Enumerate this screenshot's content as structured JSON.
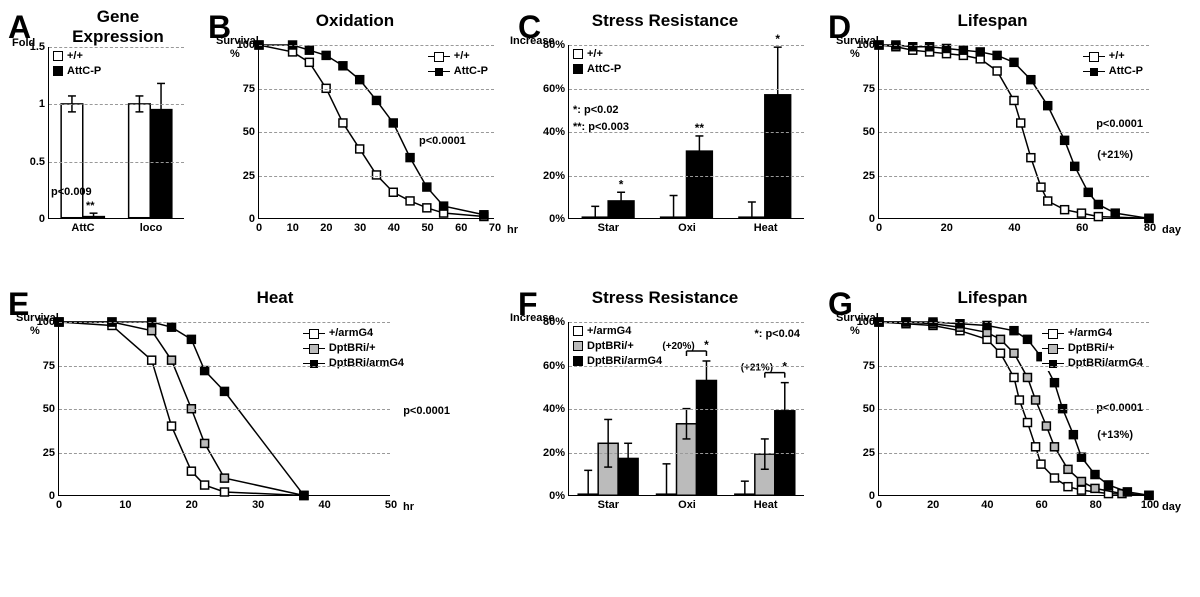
{
  "panels": {
    "A": {
      "letter": "A",
      "title": "Gene\nExpression"
    },
    "B": {
      "letter": "B",
      "title": "Oxidation"
    },
    "C": {
      "letter": "C",
      "title": "Stress Resistance"
    },
    "D": {
      "letter": "D",
      "title": "Lifespan"
    },
    "E": {
      "letter": "E",
      "title": "Heat"
    },
    "F": {
      "letter": "F",
      "title": "Stress Resistance"
    },
    "G": {
      "letter": "G",
      "title": "Lifespan"
    }
  },
  "A": {
    "ylabel_top": "Fold",
    "ylim": [
      0,
      1.5
    ],
    "yticks": [
      0,
      0.5,
      1,
      1.5
    ],
    "categories": [
      "AttC",
      "loco"
    ],
    "bars_wt": {
      "vals": [
        1.0,
        1.0
      ],
      "err": [
        0.07,
        0.07
      ]
    },
    "bars_mut": {
      "vals": [
        0.01,
        0.95
      ],
      "err": [
        0.03,
        0.23
      ]
    },
    "legend": {
      "wt": "+/+",
      "mut": "AttC-P"
    },
    "note": "p<0.009",
    "note2": "**",
    "bar_width": 0.32,
    "colors": {
      "wt": "#ffffff",
      "mut": "#000000",
      "axis": "#000000",
      "grid": "#999999"
    }
  },
  "B": {
    "ylabel_top": "Survival",
    "ylabel_unit": "%",
    "ylim": [
      0,
      100
    ],
    "yticks": [
      0,
      25,
      50,
      75,
      100
    ],
    "xlim": [
      0,
      70
    ],
    "xticks": [
      0,
      10,
      20,
      30,
      40,
      50,
      60,
      70
    ],
    "xunit": "hr",
    "series": {
      "wt": {
        "label": "+/+",
        "x": [
          0,
          10,
          15,
          20,
          25,
          30,
          35,
          40,
          45,
          50,
          55,
          67
        ],
        "y": [
          100,
          96,
          90,
          75,
          55,
          40,
          25,
          15,
          10,
          6,
          3,
          1
        ]
      },
      "mut": {
        "label": "AttC-P",
        "x": [
          0,
          10,
          15,
          20,
          25,
          30,
          35,
          40,
          45,
          50,
          55,
          67
        ],
        "y": [
          100,
          100,
          97,
          94,
          88,
          80,
          68,
          55,
          35,
          18,
          7,
          2
        ]
      }
    },
    "note": "p<0.0001"
  },
  "C": {
    "ylabel_top": "Increase",
    "ylabel_unit": "%",
    "ylim": [
      0,
      80
    ],
    "yticks": [
      0,
      20,
      40,
      60,
      80
    ],
    "categories": [
      "Star",
      "Oxi",
      "Heat"
    ],
    "bars_wt": {
      "vals": [
        0.5,
        0.5,
        0.5
      ],
      "err": [
        5,
        10,
        7
      ]
    },
    "bars_mut": {
      "vals": [
        8,
        31,
        57
      ],
      "err": [
        4,
        7,
        22
      ]
    },
    "legend": {
      "wt": "+/+",
      "mut": "AttC-P"
    },
    "sig": {
      "p1": "*: p<0.02",
      "p2": "**: p<0.003"
    },
    "stars": [
      "*",
      "**",
      "*"
    ]
  },
  "D": {
    "ylabel_top": "Survival",
    "ylabel_unit": "%",
    "ylim": [
      0,
      100
    ],
    "yticks": [
      0,
      25,
      50,
      75,
      100
    ],
    "xlim": [
      0,
      80
    ],
    "xticks": [
      0,
      20,
      40,
      60,
      80
    ],
    "xunit": "day",
    "series": {
      "wt": {
        "label": "+/+",
        "x": [
          0,
          5,
          10,
          15,
          20,
          25,
          30,
          35,
          40,
          42,
          45,
          48,
          50,
          55,
          60,
          65,
          80
        ],
        "y": [
          100,
          99,
          97,
          96,
          95,
          94,
          92,
          85,
          68,
          55,
          35,
          18,
          10,
          5,
          3,
          1,
          0
        ]
      },
      "mut": {
        "label": "AttC-P",
        "x": [
          0,
          5,
          10,
          15,
          20,
          25,
          30,
          35,
          40,
          45,
          50,
          55,
          58,
          62,
          65,
          70,
          80
        ],
        "y": [
          100,
          100,
          99,
          99,
          98,
          97,
          96,
          94,
          90,
          80,
          65,
          45,
          30,
          15,
          8,
          3,
          0
        ]
      }
    },
    "note": "p<0.0001",
    "note2": "(+21%)"
  },
  "E": {
    "ylabel_top": "Survival",
    "ylabel_unit": "%",
    "ylim": [
      0,
      100
    ],
    "yticks": [
      0,
      25,
      50,
      75,
      100
    ],
    "xlim": [
      0,
      50
    ],
    "xticks": [
      0,
      10,
      20,
      30,
      40,
      50
    ],
    "xunit": "hr",
    "series": {
      "s1": {
        "label": "+/armG4",
        "marker": "open",
        "x": [
          0,
          8,
          14,
          17,
          20,
          22,
          25,
          37
        ],
        "y": [
          100,
          98,
          78,
          40,
          14,
          6,
          2,
          0
        ]
      },
      "s2": {
        "label": "DptBRi/+",
        "marker": "grey",
        "x": [
          0,
          8,
          14,
          17,
          20,
          22,
          25,
          37
        ],
        "y": [
          100,
          100,
          95,
          78,
          50,
          30,
          10,
          0
        ]
      },
      "s3": {
        "label": "DptBRi/armG4",
        "marker": "fill",
        "x": [
          0,
          8,
          14,
          17,
          20,
          22,
          25,
          37
        ],
        "y": [
          100,
          100,
          100,
          97,
          90,
          72,
          60,
          0
        ]
      }
    },
    "note": "p<0.0001"
  },
  "F": {
    "ylabel_top": "Increase",
    "ylabel_unit": "%",
    "ylim": [
      0,
      80
    ],
    "yticks": [
      0,
      20,
      40,
      60,
      80
    ],
    "categories": [
      "Star",
      "Oxi",
      "Heat"
    ],
    "bars_s1": {
      "vals": [
        0.5,
        0.5,
        0.5
      ],
      "err": [
        11,
        14,
        6
      ]
    },
    "bars_s2": {
      "vals": [
        24,
        33,
        19
      ],
      "err": [
        11,
        7,
        7
      ]
    },
    "bars_s3": {
      "vals": [
        17,
        53,
        39
      ],
      "err": [
        7,
        9,
        13
      ]
    },
    "legend": {
      "s1": "+/armG4",
      "s2": "DptBRi/+",
      "s3": "DptBRi/armG4"
    },
    "sig": "*: p<0.04",
    "annot": {
      "oxi": "(+20%)",
      "heat": "(+21%)"
    }
  },
  "G": {
    "ylabel_top": "Survival",
    "ylabel_unit": "%",
    "ylim": [
      0,
      100
    ],
    "yticks": [
      0,
      25,
      50,
      75,
      100
    ],
    "xlim": [
      0,
      100
    ],
    "xticks": [
      0,
      20,
      40,
      60,
      80,
      100
    ],
    "xunit": "day",
    "series": {
      "s1": {
        "label": "+/armG4",
        "marker": "open",
        "x": [
          0,
          10,
          20,
          30,
          40,
          45,
          50,
          52,
          55,
          58,
          60,
          65,
          70,
          75,
          85,
          100
        ],
        "y": [
          100,
          99,
          98,
          95,
          90,
          82,
          68,
          55,
          42,
          28,
          18,
          10,
          5,
          3,
          1,
          0
        ]
      },
      "s2": {
        "label": "DptBRi/+",
        "marker": "grey",
        "x": [
          0,
          10,
          20,
          30,
          40,
          45,
          50,
          55,
          58,
          62,
          65,
          70,
          75,
          80,
          90,
          100
        ],
        "y": [
          100,
          100,
          99,
          97,
          94,
          90,
          82,
          68,
          55,
          40,
          28,
          15,
          8,
          4,
          1,
          0
        ]
      },
      "s3": {
        "label": "DptBRi/armG4",
        "marker": "fill",
        "x": [
          0,
          10,
          20,
          30,
          40,
          50,
          55,
          60,
          65,
          68,
          72,
          75,
          80,
          85,
          92,
          100
        ],
        "y": [
          100,
          100,
          100,
          99,
          98,
          95,
          90,
          80,
          65,
          50,
          35,
          22,
          12,
          6,
          2,
          0
        ]
      }
    },
    "note": "p<0.0001",
    "note2": "(+13%)"
  }
}
